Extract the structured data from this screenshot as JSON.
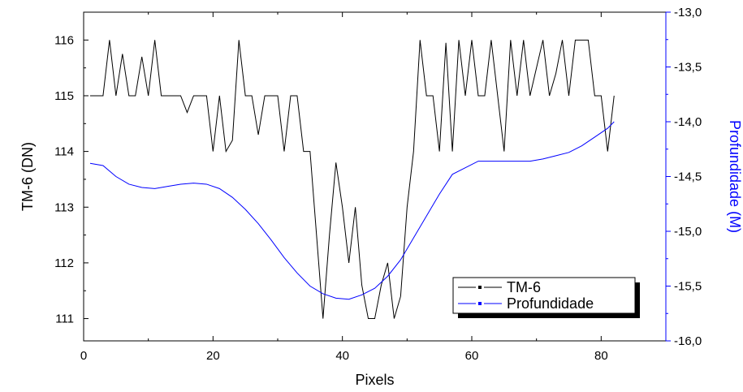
{
  "chart_data": {
    "type": "line",
    "xlabel": "Pixels",
    "ylabel_left": "TM-6 (DN)",
    "ylabel_right": "Profundidade (M)",
    "xlim": [
      0,
      90
    ],
    "xticks": [
      "0",
      "20",
      "40",
      "60",
      "80"
    ],
    "xtick_values": [
      0,
      20,
      40,
      60,
      80
    ],
    "ylim_left": [
      110.6,
      116.5
    ],
    "yticks_left": [
      "111",
      "112",
      "113",
      "114",
      "115",
      "116"
    ],
    "ytick_values_left": [
      111,
      112,
      113,
      114,
      115,
      116
    ],
    "ylim_right": [
      -16.0,
      -13.0
    ],
    "yticks_right": [
      "-16,0",
      "-15,5",
      "-15,0",
      "-14,5",
      "-14,0",
      "-13,5",
      "-13,0"
    ],
    "ytick_values_right": [
      -16.0,
      -15.5,
      -15.0,
      -14.5,
      -14.0,
      -13.5,
      -13.0
    ],
    "grid": false,
    "legend_position": "lower-right",
    "series": [
      {
        "name": "TM-6",
        "axis": "left",
        "color": "#000000",
        "points": [
          [
            1,
            115
          ],
          [
            2,
            115
          ],
          [
            3,
            115
          ],
          [
            4,
            116
          ],
          [
            5,
            115
          ],
          [
            6,
            115.75
          ],
          [
            7,
            115
          ],
          [
            8,
            115
          ],
          [
            9,
            115.7
          ],
          [
            10,
            115
          ],
          [
            11,
            116
          ],
          [
            12,
            115
          ],
          [
            13,
            115
          ],
          [
            14,
            115
          ],
          [
            15,
            115
          ],
          [
            16,
            114.7
          ],
          [
            17,
            115
          ],
          [
            18,
            115
          ],
          [
            19,
            115
          ],
          [
            20,
            114
          ],
          [
            21,
            115
          ],
          [
            22,
            114
          ],
          [
            23,
            114.2
          ],
          [
            24,
            116
          ],
          [
            25,
            115
          ],
          [
            26,
            115
          ],
          [
            27,
            114.3
          ],
          [
            28,
            115
          ],
          [
            29,
            115
          ],
          [
            30,
            115
          ],
          [
            31,
            114
          ],
          [
            32,
            115
          ],
          [
            33,
            115
          ],
          [
            34,
            114
          ],
          [
            35,
            114
          ],
          [
            36,
            112.5
          ],
          [
            37,
            111
          ],
          [
            38,
            112.5
          ],
          [
            39,
            113.8
          ],
          [
            40,
            113
          ],
          [
            41,
            112
          ],
          [
            42,
            113
          ],
          [
            43,
            111.6
          ],
          [
            44,
            111
          ],
          [
            45,
            111
          ],
          [
            46,
            111.6
          ],
          [
            47,
            112
          ],
          [
            48,
            111
          ],
          [
            49,
            111.4
          ],
          [
            50,
            113
          ],
          [
            51,
            114
          ],
          [
            52,
            116
          ],
          [
            53,
            115
          ],
          [
            54,
            115
          ],
          [
            55,
            114
          ],
          [
            56,
            115.95
          ],
          [
            57,
            114
          ],
          [
            58,
            116
          ],
          [
            59,
            115
          ],
          [
            60,
            116
          ],
          [
            61,
            115
          ],
          [
            62,
            115
          ],
          [
            63,
            116
          ],
          [
            64,
            115
          ],
          [
            65,
            114
          ],
          [
            66,
            116
          ],
          [
            67,
            115
          ],
          [
            68,
            116
          ],
          [
            69,
            115
          ],
          [
            70,
            115.5
          ],
          [
            71,
            116
          ],
          [
            72,
            115
          ],
          [
            73,
            115.4
          ],
          [
            74,
            116
          ],
          [
            75,
            115
          ],
          [
            76,
            116
          ],
          [
            77,
            116
          ],
          [
            78,
            116
          ],
          [
            79,
            115
          ],
          [
            80,
            115
          ],
          [
            81,
            114
          ],
          [
            82,
            115
          ]
        ]
      },
      {
        "name": "Profundidade",
        "axis": "right",
        "color": "#0000ff",
        "points": [
          [
            1,
            -14.38
          ],
          [
            3,
            -14.4
          ],
          [
            5,
            -14.5
          ],
          [
            7,
            -14.57
          ],
          [
            9,
            -14.6
          ],
          [
            11,
            -14.61
          ],
          [
            13,
            -14.59
          ],
          [
            15,
            -14.57
          ],
          [
            17,
            -14.56
          ],
          [
            19,
            -14.57
          ],
          [
            21,
            -14.61
          ],
          [
            23,
            -14.69
          ],
          [
            25,
            -14.8
          ],
          [
            27,
            -14.93
          ],
          [
            29,
            -15.08
          ],
          [
            31,
            -15.24
          ],
          [
            33,
            -15.38
          ],
          [
            35,
            -15.5
          ],
          [
            37,
            -15.57
          ],
          [
            39,
            -15.61
          ],
          [
            41,
            -15.62
          ],
          [
            43,
            -15.58
          ],
          [
            45,
            -15.52
          ],
          [
            47,
            -15.41
          ],
          [
            49,
            -15.26
          ],
          [
            51,
            -15.06
          ],
          [
            53,
            -14.86
          ],
          [
            55,
            -14.66
          ],
          [
            57,
            -14.48
          ],
          [
            59,
            -14.42
          ],
          [
            61,
            -14.36
          ],
          [
            63,
            -14.36
          ],
          [
            65,
            -14.36
          ],
          [
            67,
            -14.36
          ],
          [
            69,
            -14.36
          ],
          [
            71,
            -14.34
          ],
          [
            73,
            -14.31
          ],
          [
            75,
            -14.28
          ],
          [
            77,
            -14.22
          ],
          [
            79,
            -14.14
          ],
          [
            81,
            -14.06
          ],
          [
            82,
            -14.0
          ]
        ]
      }
    ]
  }
}
